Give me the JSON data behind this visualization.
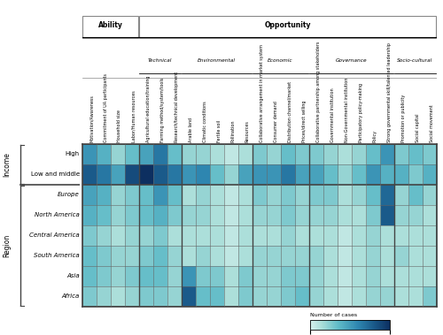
{
  "columns": [
    "Motivation/Awareness",
    "Commitment of UA participants",
    "Household size",
    "Labor/Human resources",
    "Agricultural education/training",
    "Farming method/system/tools",
    "Research/technical development",
    "Arable land",
    "Climatic conditions",
    "Fertile soil",
    "Pollination",
    "Resources",
    "Collaborative arrangement in market system",
    "Consumer demand",
    "Distribution channel/market",
    "Prices/direct selling",
    "Collaborative partnership among stakeholders",
    "Governmental institution",
    "Non-Governmental institution",
    "Participatory policy-making",
    "Policy",
    "Strong governmental skill/talented leadership",
    "Promotion or publicity",
    "Social capital",
    "Social movement"
  ],
  "rows": [
    "High",
    "Low and middle",
    "Europe",
    "North America",
    "Central America",
    "South America",
    "Asia",
    "Africa"
  ],
  "data": [
    [
      8,
      6,
      3,
      5,
      7,
      10,
      5,
      3,
      3,
      2,
      1,
      2,
      4,
      3,
      5,
      4,
      4,
      3,
      2,
      3,
      5,
      8,
      4,
      5,
      4
    ],
    [
      12,
      10,
      7,
      13,
      15,
      12,
      10,
      8,
      9,
      5,
      3,
      7,
      8,
      8,
      10,
      7,
      7,
      5,
      3,
      5,
      8,
      6,
      6,
      4,
      6
    ],
    [
      7,
      6,
      3,
      4,
      5,
      8,
      5,
      2,
      3,
      2,
      1,
      2,
      4,
      3,
      4,
      3,
      4,
      4,
      2,
      3,
      5,
      11,
      3,
      5,
      3
    ],
    [
      6,
      5,
      3,
      4,
      5,
      6,
      4,
      3,
      3,
      2,
      1,
      2,
      3,
      3,
      4,
      3,
      3,
      3,
      2,
      2,
      4,
      12,
      3,
      3,
      2
    ],
    [
      4,
      3,
      2,
      3,
      3,
      4,
      2,
      2,
      2,
      2,
      1,
      2,
      2,
      2,
      3,
      2,
      2,
      2,
      1,
      2,
      3,
      2,
      2,
      2,
      2
    ],
    [
      5,
      4,
      3,
      3,
      4,
      5,
      3,
      2,
      3,
      2,
      1,
      2,
      3,
      3,
      3,
      3,
      3,
      2,
      1,
      2,
      3,
      2,
      3,
      2,
      2
    ],
    [
      5,
      4,
      3,
      4,
      5,
      5,
      3,
      8,
      4,
      4,
      2,
      4,
      3,
      3,
      4,
      4,
      3,
      2,
      1,
      2,
      3,
      2,
      2,
      2,
      2
    ],
    [
      4,
      3,
      2,
      3,
      4,
      4,
      3,
      12,
      5,
      5,
      2,
      4,
      3,
      3,
      4,
      5,
      3,
      2,
      1,
      2,
      3,
      3,
      2,
      2,
      4
    ]
  ],
  "vmin": 0,
  "vmax": 15,
  "income_label": "Income",
  "region_label": "Region",
  "income_rows": [
    0,
    1
  ],
  "region_rows": [
    2,
    7
  ],
  "ability_cols": [
    0,
    3
  ],
  "opportunity_cols": [
    4,
    24
  ],
  "sub_groups": [
    {
      "label": "Technical",
      "start": 4,
      "end": 6
    },
    {
      "label": "Environmental",
      "start": 7,
      "end": 11
    },
    {
      "label": "Economic",
      "start": 12,
      "end": 15
    },
    {
      "label": "Governance",
      "start": 16,
      "end": 21
    },
    {
      "label": "Socio-cultural",
      "start": 22,
      "end": 24
    }
  ],
  "colorbar_label": "Number of cases",
  "grid_color": "#666666",
  "border_color": "#444444"
}
